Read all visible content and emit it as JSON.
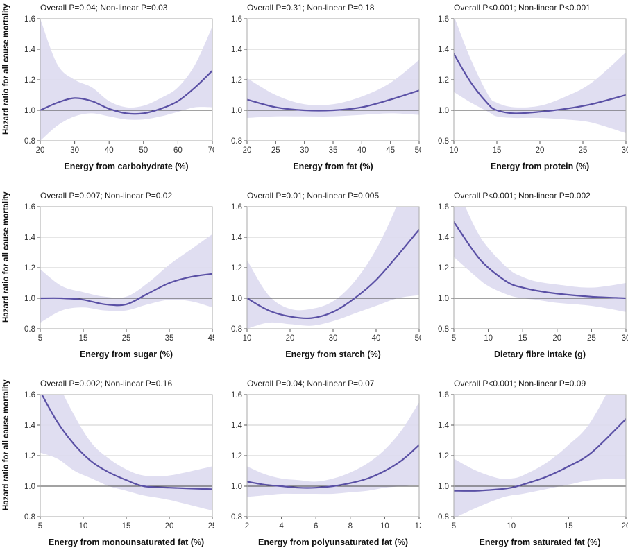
{
  "figure": {
    "ylabel": "Hazard ratio for all cause mortality",
    "ylim": [
      0.8,
      1.6
    ],
    "yticks": [
      0.8,
      1.0,
      1.2,
      1.4,
      1.6
    ],
    "reference_y": 1.0,
    "grid_on": true,
    "legend": "none",
    "colors": {
      "curve": "#5a50a5",
      "band": "#dddaf0",
      "grid": "#cccccc",
      "reference": "#444444",
      "frame": "#aaaaaa",
      "tick_text": "#333333"
    }
  },
  "chart_data": [
    {
      "type": "line",
      "title": "Overall P=0.04; Non-linear P=0.03",
      "xlabel": "Energy from carbohydrate (%)",
      "ylabel": "Hazard ratio for all cause mortality",
      "xlim": [
        20,
        70
      ],
      "xticks": [
        20,
        30,
        40,
        50,
        60,
        70
      ],
      "x": [
        20,
        25,
        30,
        35,
        40,
        45,
        50,
        55,
        60,
        65,
        70
      ],
      "y": [
        1.0,
        1.05,
        1.08,
        1.06,
        1.01,
        0.98,
        0.98,
        1.01,
        1.06,
        1.15,
        1.26
      ],
      "lower": [
        0.8,
        0.9,
        0.96,
        0.98,
        0.96,
        0.94,
        0.94,
        0.96,
        0.99,
        1.02,
        1.02
      ],
      "upper": [
        1.6,
        1.3,
        1.2,
        1.15,
        1.06,
        1.02,
        1.03,
        1.08,
        1.15,
        1.3,
        1.55
      ]
    },
    {
      "type": "line",
      "title": "Overall P=0.31; Non-linear P=0.18",
      "xlabel": "Energy from fat (%)",
      "ylabel": "Hazard ratio for all cause mortality",
      "xlim": [
        20,
        50
      ],
      "xticks": [
        20,
        25,
        30,
        35,
        40,
        45,
        50
      ],
      "x": [
        20,
        25,
        30,
        35,
        40,
        45,
        50
      ],
      "y": [
        1.07,
        1.02,
        1.0,
        1.0,
        1.02,
        1.07,
        1.13
      ],
      "lower": [
        0.95,
        0.96,
        0.96,
        0.96,
        0.97,
        0.98,
        0.97
      ],
      "upper": [
        1.21,
        1.1,
        1.04,
        1.04,
        1.09,
        1.18,
        1.33
      ]
    },
    {
      "type": "line",
      "title": "Overall P<0.001; Non-linear P<0.001",
      "xlabel": "Energy from protein (%)",
      "ylabel": "Hazard ratio for all cause mortality",
      "xlim": [
        10,
        30
      ],
      "xticks": [
        10,
        15,
        20,
        25,
        30
      ],
      "x": [
        10,
        12,
        14,
        15,
        17,
        20,
        23,
        26,
        30
      ],
      "y": [
        1.37,
        1.18,
        1.04,
        1.0,
        0.98,
        0.99,
        1.01,
        1.04,
        1.1
      ],
      "lower": [
        1.12,
        1.05,
        0.99,
        0.96,
        0.95,
        0.95,
        0.94,
        0.92,
        0.85
      ],
      "upper": [
        1.62,
        1.33,
        1.1,
        1.05,
        1.02,
        1.03,
        1.09,
        1.18,
        1.38
      ]
    },
    {
      "type": "line",
      "title": "Overall P=0.007; Non-linear P=0.02",
      "xlabel": "Energy from sugar (%)",
      "ylabel": "Hazard ratio for all cause mortality",
      "xlim": [
        5,
        45
      ],
      "xticks": [
        5,
        15,
        25,
        35,
        45
      ],
      "x": [
        5,
        10,
        15,
        20,
        25,
        30,
        35,
        40,
        45
      ],
      "y": [
        1.0,
        1.0,
        0.99,
        0.96,
        0.96,
        1.03,
        1.1,
        1.14,
        1.16
      ],
      "lower": [
        0.84,
        0.92,
        0.94,
        0.92,
        0.92,
        0.96,
        0.99,
        0.98,
        0.94
      ],
      "upper": [
        1.19,
        1.08,
        1.04,
        1.01,
        1.01,
        1.1,
        1.22,
        1.32,
        1.42
      ]
    },
    {
      "type": "line",
      "title": "Overall P=0.01; Non-linear P=0.005",
      "xlabel": "Energy from starch (%)",
      "ylabel": "Hazard ratio for all cause mortality",
      "xlim": [
        10,
        50
      ],
      "xticks": [
        10,
        20,
        30,
        40,
        50
      ],
      "x": [
        10,
        15,
        20,
        25,
        30,
        35,
        40,
        45,
        50
      ],
      "y": [
        1.0,
        0.92,
        0.88,
        0.87,
        0.91,
        1.0,
        1.12,
        1.28,
        1.45
      ],
      "lower": [
        0.8,
        0.84,
        0.83,
        0.82,
        0.85,
        0.9,
        0.95,
        1.0,
        1.02
      ],
      "upper": [
        1.25,
        1.02,
        0.93,
        0.93,
        0.98,
        1.11,
        1.32,
        1.62,
        2.0
      ]
    },
    {
      "type": "line",
      "title": "Overall P<0.001; Non-linear P=0.002",
      "xlabel": "Dietary fibre intake (g)",
      "ylabel": "Hazard ratio for all cause mortality",
      "xlim": [
        5,
        30
      ],
      "xticks": [
        5,
        10,
        15,
        20,
        25,
        30
      ],
      "x": [
        5,
        8,
        10,
        13,
        15,
        17,
        20,
        25,
        30
      ],
      "y": [
        1.5,
        1.3,
        1.2,
        1.1,
        1.07,
        1.05,
        1.03,
        1.01,
        1.0
      ],
      "lower": [
        1.27,
        1.15,
        1.08,
        1.02,
        1.0,
        0.99,
        0.97,
        0.95,
        0.91
      ],
      "upper": [
        1.77,
        1.47,
        1.33,
        1.19,
        1.14,
        1.11,
        1.09,
        1.07,
        1.1
      ]
    },
    {
      "type": "line",
      "title": "Overall P=0.002; Non-linear P=0.16",
      "xlabel": "Energy from monounsaturated fat (%)",
      "ylabel": "Hazard ratio for all cause mortality",
      "xlim": [
        5,
        25
      ],
      "xticks": [
        5,
        10,
        15,
        20,
        25
      ],
      "x": [
        5,
        7,
        9,
        11,
        13,
        15,
        17,
        20,
        25
      ],
      "y": [
        1.62,
        1.42,
        1.27,
        1.16,
        1.09,
        1.04,
        1.0,
        0.99,
        0.98
      ],
      "lower": [
        1.22,
        1.18,
        1.1,
        1.05,
        1.0,
        0.97,
        0.94,
        0.91,
        0.84
      ],
      "upper": [
        2.1,
        1.7,
        1.46,
        1.28,
        1.18,
        1.11,
        1.07,
        1.07,
        1.13
      ]
    },
    {
      "type": "line",
      "title": "Overall P=0.04; Non-linear P=0.07",
      "xlabel": "Energy from polyunsaturated fat (%)",
      "ylabel": "Hazard ratio for all cause mortality",
      "xlim": [
        2,
        12
      ],
      "xticks": [
        2,
        4,
        6,
        8,
        10,
        12
      ],
      "x": [
        2,
        3,
        4,
        5,
        6,
        7,
        8,
        9,
        10,
        11,
        12
      ],
      "y": [
        1.03,
        1.01,
        1.0,
        0.99,
        0.99,
        1.0,
        1.02,
        1.05,
        1.1,
        1.17,
        1.27
      ],
      "lower": [
        0.93,
        0.94,
        0.95,
        0.95,
        0.95,
        0.95,
        0.96,
        0.97,
        0.99,
        1.0,
        1.01
      ],
      "upper": [
        1.13,
        1.08,
        1.05,
        1.04,
        1.03,
        1.05,
        1.09,
        1.15,
        1.24,
        1.37,
        1.55
      ]
    },
    {
      "type": "line",
      "title": "Overall P<0.001; Non-linear P=0.09",
      "xlabel": "Energy from saturated fat (%)",
      "ylabel": "Hazard ratio for all cause mortality",
      "xlim": [
        5,
        20
      ],
      "xticks": [
        5,
        10,
        15,
        20
      ],
      "x": [
        5,
        7,
        9,
        10,
        11,
        13,
        15,
        17,
        20
      ],
      "y": [
        0.97,
        0.97,
        0.98,
        0.99,
        1.01,
        1.06,
        1.13,
        1.22,
        1.44
      ],
      "lower": [
        0.79,
        0.86,
        0.92,
        0.94,
        0.95,
        0.98,
        1.01,
        1.04,
        1.05
      ],
      "upper": [
        1.18,
        1.1,
        1.05,
        1.05,
        1.07,
        1.15,
        1.27,
        1.43,
        1.85
      ]
    }
  ]
}
